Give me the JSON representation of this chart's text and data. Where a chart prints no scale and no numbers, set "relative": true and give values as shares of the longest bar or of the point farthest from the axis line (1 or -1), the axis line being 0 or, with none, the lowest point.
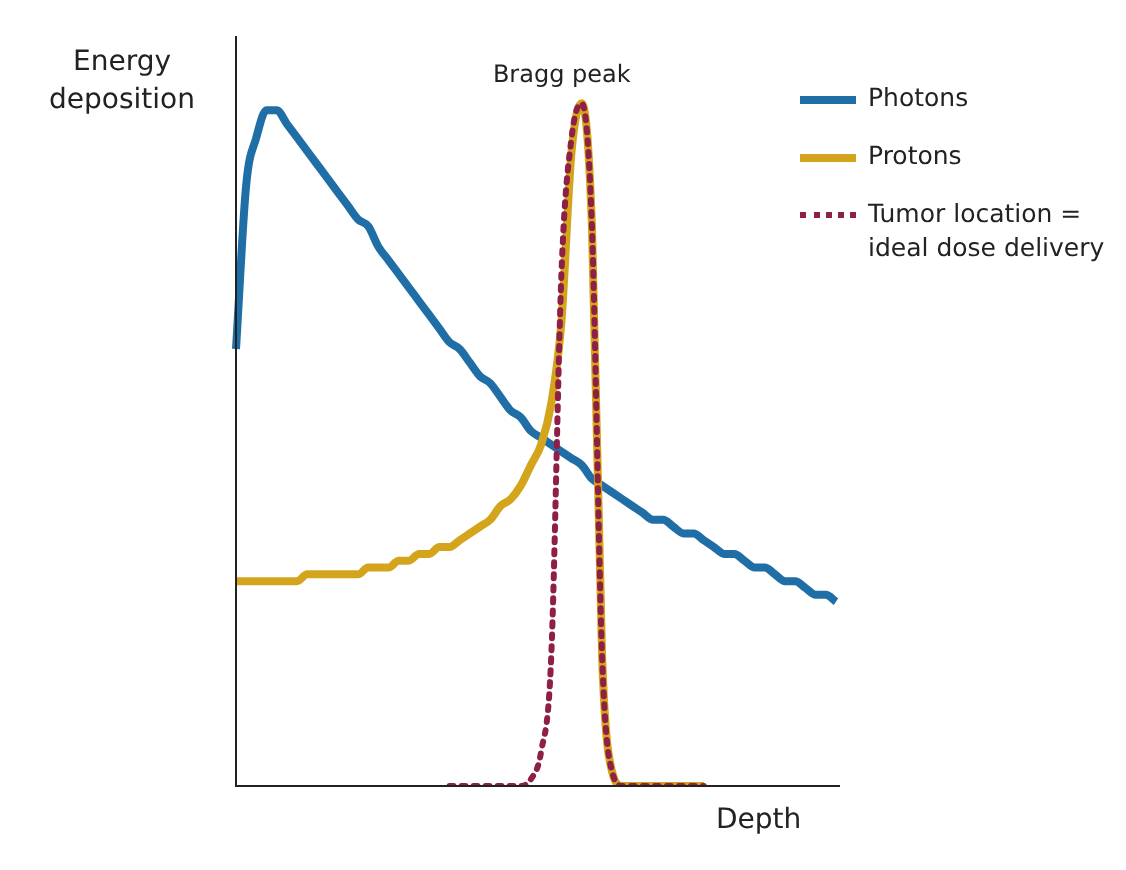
{
  "chart_data": {
    "type": "line",
    "relative": true,
    "ylabel": "Energy deposition",
    "xlabel": "Depth",
    "annotations": [
      "Bragg peak"
    ],
    "legend": "top right",
    "marker": "none",
    "tick_labels": false,
    "categories": [
      null,
      null,
      null,
      null,
      null,
      null,
      null,
      null,
      null,
      null,
      null,
      null,
      null,
      null,
      null,
      null,
      null,
      null,
      null,
      null,
      null,
      null,
      null,
      null,
      null,
      null,
      null,
      null,
      null,
      null,
      null,
      null,
      null,
      null,
      null,
      null,
      null,
      null,
      null,
      null,
      null,
      null,
      null,
      null,
      null,
      null,
      null,
      null,
      null,
      null,
      null,
      null,
      null,
      null,
      null,
      null,
      null,
      null,
      null,
      null
    ],
    "series": [
      {
        "name": "Photons",
        "color": "#1f6ea6",
        "line_style": "solid",
        "values": [
          0.64,
          0.88,
          0.95,
          0.99,
          0.99,
          0.97,
          0.95,
          0.93,
          0.91,
          0.89,
          0.87,
          0.85,
          0.83,
          0.82,
          0.79,
          0.77,
          0.75,
          0.73,
          0.71,
          0.69,
          0.67,
          0.65,
          0.64,
          0.62,
          0.6,
          0.59,
          0.57,
          0.55,
          0.54,
          0.52,
          0.51,
          0.5,
          0.49,
          0.48,
          0.47,
          0.45,
          0.44,
          0.43,
          0.42,
          0.41,
          0.4,
          0.39,
          0.39,
          0.38,
          0.37,
          0.37,
          0.36,
          0.35,
          0.34,
          0.34,
          0.33,
          0.32,
          0.32,
          0.31,
          0.3,
          0.3,
          0.29,
          0.28,
          0.28,
          0.27
        ]
      },
      {
        "name": "Protons",
        "color": "#d4a51c",
        "line_style": "solid",
        "values": [
          0.3,
          0.3,
          0.3,
          0.3,
          0.3,
          0.3,
          0.3,
          0.31,
          0.31,
          0.31,
          0.31,
          0.31,
          0.31,
          0.32,
          0.32,
          0.32,
          0.33,
          0.33,
          0.34,
          0.34,
          0.35,
          0.35,
          0.36,
          0.37,
          0.38,
          0.39,
          0.41,
          0.42,
          0.44,
          0.47,
          0.5,
          0.56,
          0.68,
          0.93,
          1,
          0.82,
          0.19,
          0.02,
          0,
          0,
          0,
          0,
          0,
          0,
          0,
          0,
          0,
          null,
          null,
          null,
          null,
          null,
          null,
          null,
          null,
          null,
          null,
          null,
          null,
          null
        ]
      },
      {
        "name": "Tumor location = ideal dose delivery",
        "color": "#8e1f46",
        "line_style": "dotted",
        "values": [
          null,
          null,
          null,
          null,
          null,
          null,
          null,
          null,
          null,
          null,
          null,
          null,
          null,
          null,
          null,
          null,
          null,
          null,
          null,
          null,
          null,
          0,
          0,
          0,
          0,
          0,
          0,
          0,
          0,
          0.01,
          0.05,
          0.19,
          0.75,
          0.95,
          1,
          0.82,
          0.19,
          0.02,
          0,
          0,
          0,
          0,
          0,
          0,
          0,
          0,
          0,
          null,
          null,
          null,
          null,
          null,
          null,
          null,
          null,
          null,
          null,
          null,
          null,
          null
        ]
      }
    ]
  }
}
